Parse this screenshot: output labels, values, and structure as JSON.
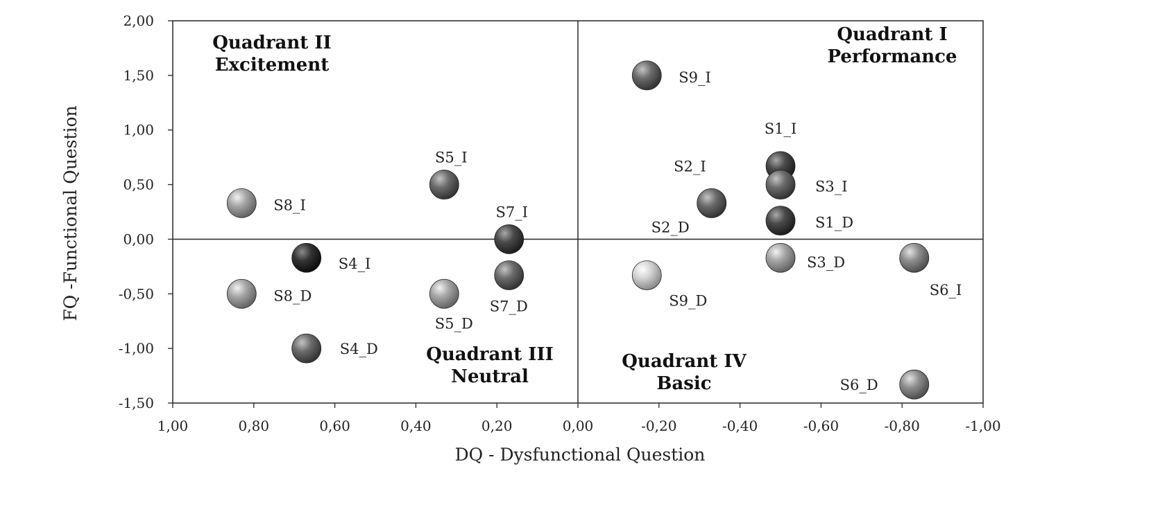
{
  "chart_data": {
    "type": "scatter",
    "title": "",
    "xlabel": "DQ - Dysfunctional Question",
    "ylabel": "FQ -Functional Question",
    "xlim": [
      1.0,
      -1.0
    ],
    "ylim": [
      -1.5,
      2.0
    ],
    "x_reversed": true,
    "grid": false,
    "x_ticks": [
      1.0,
      0.8,
      0.6,
      0.4,
      0.2,
      0.0,
      -0.2,
      -0.4,
      -0.6,
      -0.8,
      -1.0
    ],
    "x_tick_labels": [
      "1,00",
      "0,80",
      "0,60",
      "0,40",
      "0,20",
      "0,00",
      "-0,20",
      "-0,40",
      "-0,60",
      "-0,80",
      "-1,00"
    ],
    "y_ticks": [
      2.0,
      1.5,
      1.0,
      0.5,
      0.0,
      -0.5,
      -1.0,
      -1.5
    ],
    "y_tick_labels": [
      "2,00",
      "1,50",
      "1,00",
      "0,50",
      "0,00",
      "-0,50",
      "-1,00",
      "-1,50"
    ],
    "quadrants": [
      {
        "line1": "Quadrant II",
        "line2": "Excitement"
      },
      {
        "line1": "Quadrant I",
        "line2": "Performance"
      },
      {
        "line1": "Quadrant III",
        "line2": "Neutral"
      },
      {
        "line1": "Quadrant IV",
        "line2": "Basic"
      }
    ],
    "points": [
      {
        "label": "S1_I",
        "x": -0.5,
        "y": 0.67,
        "tone": "dark"
      },
      {
        "label": "S1_D",
        "x": -0.5,
        "y": 0.17,
        "tone": "dark"
      },
      {
        "label": "S2_I",
        "x": -0.33,
        "y": 0.33,
        "tone": "mid"
      },
      {
        "label": "S2_D",
        "x": -0.33,
        "y": 0.33,
        "tone": "mid"
      },
      {
        "label": "S3_I",
        "x": -0.5,
        "y": 0.5,
        "tone": "mid"
      },
      {
        "label": "S3_D",
        "x": -0.5,
        "y": -0.17,
        "tone": "light"
      },
      {
        "label": "S4_I",
        "x": 0.67,
        "y": -0.17,
        "tone": "darkest"
      },
      {
        "label": "S4_D",
        "x": 0.67,
        "y": -1.0,
        "tone": "mid"
      },
      {
        "label": "S5_I",
        "x": 0.33,
        "y": 0.5,
        "tone": "mid"
      },
      {
        "label": "S5_D",
        "x": 0.33,
        "y": -0.5,
        "tone": "light"
      },
      {
        "label": "S6_I",
        "x": -0.83,
        "y": -0.17,
        "tone": "midlight"
      },
      {
        "label": "S6_D",
        "x": -0.83,
        "y": -1.33,
        "tone": "midlight"
      },
      {
        "label": "S7_I",
        "x": 0.17,
        "y": 0.0,
        "tone": "dark"
      },
      {
        "label": "S7_D",
        "x": 0.17,
        "y": -0.33,
        "tone": "mid"
      },
      {
        "label": "S8_I",
        "x": 0.83,
        "y": 0.33,
        "tone": "light"
      },
      {
        "label": "S8_D",
        "x": 0.83,
        "y": -0.5,
        "tone": "light"
      },
      {
        "label": "S9_I",
        "x": -0.17,
        "y": 1.5,
        "tone": "mid"
      },
      {
        "label": "S9_D",
        "x": -0.17,
        "y": -0.33,
        "tone": "lightest"
      }
    ]
  }
}
